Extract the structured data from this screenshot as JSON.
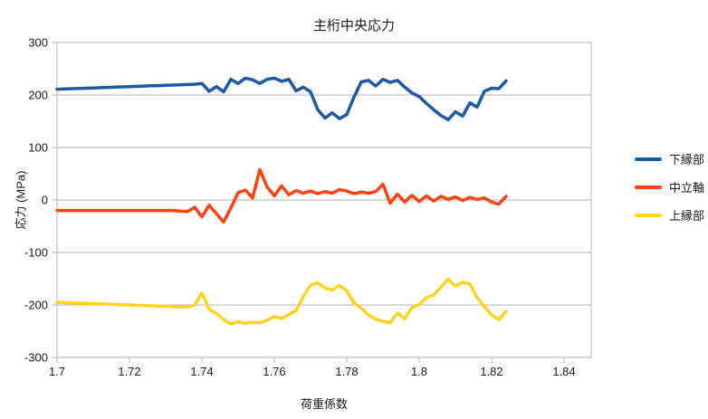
{
  "chart_data": {
    "type": "line",
    "title": "主桁中央応力",
    "xlabel": "荷重係数",
    "ylabel": "応力 (MPa)",
    "xlim": [
      1.7,
      1.8475
    ],
    "ylim": [
      -300,
      300
    ],
    "grid": "horizontal",
    "legend_position": "right",
    "x_ticks": [
      1.7,
      1.72,
      1.74,
      1.76,
      1.78,
      1.8,
      1.82,
      1.84
    ],
    "x_tick_labels": [
      "1.7",
      "1.72",
      "1.74",
      "1.76",
      "1.78",
      "1.8",
      "1.82",
      "1.84"
    ],
    "y_ticks": [
      300,
      200,
      100,
      0,
      -100,
      -200,
      -300
    ],
    "y_tick_labels": [
      "300",
      "200",
      "100",
      "0",
      "-100",
      "-200",
      "-300"
    ],
    "grid_color": "#b3b3b3",
    "x": [
      1.7,
      1.702,
      1.704,
      1.706,
      1.708,
      1.71,
      1.712,
      1.714,
      1.716,
      1.718,
      1.72,
      1.722,
      1.724,
      1.726,
      1.728,
      1.73,
      1.732,
      1.734,
      1.736,
      1.738,
      1.74,
      1.742,
      1.744,
      1.746,
      1.748,
      1.75,
      1.752,
      1.754,
      1.756,
      1.758,
      1.76,
      1.762,
      1.764,
      1.766,
      1.768,
      1.77,
      1.772,
      1.774,
      1.776,
      1.778,
      1.78,
      1.782,
      1.784,
      1.786,
      1.788,
      1.79,
      1.792,
      1.794,
      1.796,
      1.798,
      1.8,
      1.802,
      1.804,
      1.806,
      1.808,
      1.81,
      1.812,
      1.814,
      1.816,
      1.818,
      1.82,
      1.822,
      1.824
    ],
    "series": [
      {
        "name": "下縁部",
        "color": "#1c5aa6",
        "values": [
          211,
          211.5,
          212,
          212.5,
          213,
          213.5,
          214,
          214.5,
          215,
          215.5,
          216,
          216.5,
          217,
          217.5,
          218,
          218.5,
          219,
          219.5,
          220,
          220.5,
          222,
          207,
          216,
          206,
          230,
          222,
          232,
          229,
          222,
          230,
          232,
          226,
          230,
          208,
          215,
          206,
          172,
          156,
          166,
          155,
          163,
          196,
          225,
          228,
          217,
          230,
          224,
          228,
          215,
          204,
          197,
          184,
          172,
          161,
          153,
          168,
          160,
          185,
          177,
          207,
          213,
          212,
          227
        ]
      },
      {
        "name": "中立軸",
        "color": "#ff4214",
        "values": [
          -20,
          -20,
          -20,
          -20,
          -20,
          -20,
          -20,
          -20,
          -20,
          -20,
          -20,
          -20,
          -20,
          -20,
          -20,
          -20,
          -20,
          -21,
          -22,
          -14,
          -32,
          -10,
          -26,
          -42,
          -15,
          14,
          19,
          4,
          58,
          25,
          8,
          27,
          10,
          18,
          13,
          17,
          12,
          16,
          13,
          20,
          17,
          12,
          15,
          13,
          16,
          30,
          -6,
          11,
          -4,
          9,
          -3,
          8,
          -2,
          7,
          1,
          6,
          -1,
          5,
          1,
          4,
          -4,
          -8,
          7
        ]
      },
      {
        "name": "上縁部",
        "color": "#ffd320",
        "values": [
          -195,
          -195.5,
          -196,
          -196.5,
          -197,
          -197.5,
          -198,
          -198.5,
          -199,
          -199.5,
          -200,
          -200.5,
          -201,
          -201.5,
          -202,
          -202.5,
          -203,
          -203.5,
          -204,
          -200,
          -177,
          -208,
          -216,
          -228,
          -236,
          -232,
          -235,
          -233,
          -234,
          -229,
          -222,
          -226,
          -218,
          -211,
          -184,
          -162,
          -158,
          -168,
          -171,
          -163,
          -173,
          -196,
          -206,
          -219,
          -227,
          -231,
          -234,
          -215,
          -226,
          -205,
          -199,
          -186,
          -181,
          -166,
          -151,
          -164,
          -157,
          -160,
          -186,
          -203,
          -219,
          -228,
          -212
        ]
      }
    ]
  }
}
